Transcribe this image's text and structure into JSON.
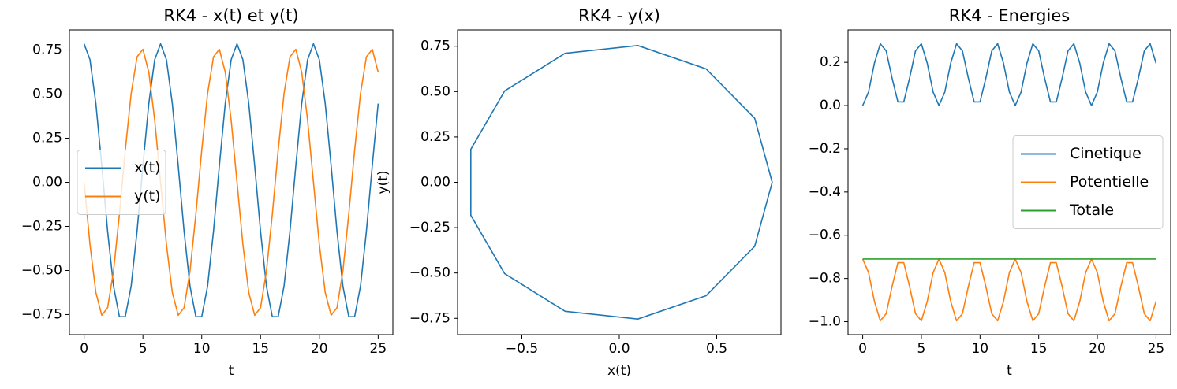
{
  "chart_data": [
    {
      "type": "line",
      "title": "RK4 - x(t) et y(t)",
      "x_label": "t",
      "x": [
        0,
        0.5,
        1,
        1.5,
        2,
        2.5,
        3,
        3.5,
        4,
        4.5,
        5,
        5.5,
        6,
        6.5,
        7,
        7.5,
        8,
        8.5,
        9,
        9.5,
        10,
        10.5,
        11,
        11.5,
        12,
        12.5,
        13,
        13.5,
        14,
        14.5,
        15,
        15.5,
        16,
        16.5,
        17,
        17.5,
        18,
        18.5,
        19,
        19.5,
        20,
        20.5,
        21,
        21.5,
        22,
        22.5,
        23,
        23.5,
        24,
        24.5,
        25
      ],
      "series": [
        {
          "name": "x(t)",
          "color": "#1f77b4",
          "values": [
            0.785,
            0.695,
            0.446,
            0.095,
            -0.278,
            -0.588,
            -0.762,
            -0.762,
            -0.588,
            -0.278,
            0.095,
            0.446,
            0.695,
            0.785,
            0.695,
            0.446,
            0.095,
            -0.278,
            -0.588,
            -0.762,
            -0.762,
            -0.588,
            -0.278,
            0.095,
            0.446,
            0.695,
            0.785,
            0.695,
            0.446,
            0.095,
            -0.278,
            -0.588,
            -0.762,
            -0.762,
            -0.588,
            -0.278,
            0.095,
            0.446,
            0.695,
            0.785,
            0.695,
            0.446,
            0.095,
            -0.278,
            -0.588,
            -0.762,
            -0.762,
            -0.588,
            -0.278,
            0.095,
            0.446
          ]
        },
        {
          "name": "y(t)",
          "color": "#ff7f0e",
          "values": [
            0,
            -0.353,
            -0.625,
            -0.754,
            -0.711,
            -0.504,
            -0.182,
            0.182,
            0.504,
            0.711,
            0.754,
            0.625,
            0.353,
            0,
            -0.353,
            -0.625,
            -0.754,
            -0.711,
            -0.504,
            -0.182,
            0.182,
            0.504,
            0.711,
            0.754,
            0.625,
            0.353,
            0,
            -0.353,
            -0.625,
            -0.754,
            -0.711,
            -0.504,
            -0.182,
            0.182,
            0.504,
            0.711,
            0.754,
            0.625,
            0.353,
            0,
            -0.353,
            -0.625,
            -0.754,
            -0.711,
            -0.504,
            -0.182,
            0.182,
            0.504,
            0.711,
            0.754,
            0.625
          ]
        }
      ],
      "xlim": [
        -1.25,
        26.25
      ],
      "xticks": [
        0,
        5,
        10,
        15,
        20,
        25
      ],
      "ylim": [
        -0.864,
        0.864
      ],
      "yticks": [
        {
          "value": -0.75,
          "label": "−0.75"
        },
        {
          "value": -0.5,
          "label": "−0.50"
        },
        {
          "value": -0.25,
          "label": "−0.25"
        },
        {
          "value": 0,
          "label": "0.00"
        },
        0.25,
        {
          "value": 0.5,
          "label": "0.50"
        },
        0.75
      ],
      "legend": "center left"
    },
    {
      "type": "line",
      "title": "RK4 - y(x)",
      "x_label": "x(t)",
      "y_label": "y(t)",
      "x": [
        0.785,
        0.695,
        0.446,
        0.095,
        -0.278,
        -0.588,
        -0.762,
        -0.762,
        -0.588,
        -0.278,
        0.095,
        0.446,
        0.695,
        0.785,
        0.695,
        0.446,
        0.095,
        -0.278,
        -0.588,
        -0.762,
        -0.762,
        -0.588,
        -0.278,
        0.095,
        0.446,
        0.695,
        0.785,
        0.695,
        0.446,
        0.095,
        -0.278,
        -0.588,
        -0.762,
        -0.762,
        -0.588,
        -0.278,
        0.095,
        0.446,
        0.695,
        0.785,
        0.695,
        0.446,
        0.095,
        -0.278,
        -0.588,
        -0.762,
        -0.762,
        -0.588,
        -0.278,
        0.095,
        0.446
      ],
      "series": [
        {
          "color": "#1f77b4",
          "values": [
            0,
            -0.353,
            -0.625,
            -0.754,
            -0.711,
            -0.504,
            -0.182,
            0.182,
            0.504,
            0.711,
            0.754,
            0.625,
            0.353,
            0,
            -0.353,
            -0.625,
            -0.754,
            -0.711,
            -0.504,
            -0.182,
            0.182,
            0.504,
            0.711,
            0.754,
            0.625,
            0.353,
            0,
            -0.353,
            -0.625,
            -0.754,
            -0.711,
            -0.504,
            -0.182,
            0.182,
            0.504,
            0.711,
            0.754,
            0.625,
            0.353,
            0,
            -0.353,
            -0.625,
            -0.754,
            -0.711,
            -0.504,
            -0.182,
            0.182,
            0.504,
            0.711,
            0.754,
            0.625
          ]
        }
      ],
      "xlim": [
        -0.83,
        0.83
      ],
      "xticks": [
        {
          "value": -0.5,
          "label": "−0.5"
        },
        {
          "value": 0,
          "label": "0.0"
        },
        {
          "value": 0.5,
          "label": "0.5"
        }
      ],
      "ylim": [
        -0.84,
        0.84
      ],
      "yticks": [
        {
          "value": -0.75,
          "label": "−0.75"
        },
        {
          "value": -0.5,
          "label": "−0.50"
        },
        {
          "value": -0.25,
          "label": "−0.25"
        },
        {
          "value": 0,
          "label": "0.00"
        },
        0.25,
        {
          "value": 0.5,
          "label": "0.50"
        },
        0.75
      ]
    },
    {
      "type": "line",
      "title": "RK4 - Energies",
      "x_label": "t",
      "x": [
        0,
        0.5,
        1,
        1.5,
        2,
        2.5,
        3,
        3.5,
        4,
        4.5,
        5,
        5.5,
        6,
        6.5,
        7,
        7.5,
        8,
        8.5,
        9,
        9.5,
        10,
        10.5,
        11,
        11.5,
        12,
        12.5,
        13,
        13.5,
        14,
        14.5,
        15,
        15.5,
        16,
        16.5,
        17,
        17.5,
        18,
        18.5,
        19,
        19.5,
        20,
        20.5,
        21,
        21.5,
        22,
        22.5,
        23,
        23.5,
        24,
        24.5,
        25
      ],
      "series": [
        {
          "name": "Cinetique",
          "color": "#1f77b4",
          "values": [
            0,
            0.063,
            0.196,
            0.286,
            0.253,
            0.128,
            0.017,
            0.017,
            0.128,
            0.253,
            0.286,
            0.196,
            0.063,
            0,
            0.063,
            0.196,
            0.286,
            0.253,
            0.128,
            0.017,
            0.017,
            0.128,
            0.253,
            0.286,
            0.196,
            0.063,
            0,
            0.063,
            0.196,
            0.286,
            0.253,
            0.128,
            0.017,
            0.017,
            0.128,
            0.253,
            0.286,
            0.196,
            0.063,
            0,
            0.063,
            0.196,
            0.286,
            0.253,
            0.128,
            0.017,
            0.017,
            0.128,
            0.253,
            0.286,
            0.196
          ]
        },
        {
          "name": "Potentielle",
          "color": "#ff7f0e",
          "values": [
            -0.71,
            -0.773,
            -0.906,
            -0.996,
            -0.963,
            -0.838,
            -0.727,
            -0.727,
            -0.838,
            -0.963,
            -0.996,
            -0.906,
            -0.773,
            -0.71,
            -0.773,
            -0.906,
            -0.996,
            -0.963,
            -0.838,
            -0.727,
            -0.727,
            -0.838,
            -0.963,
            -0.996,
            -0.906,
            -0.773,
            -0.71,
            -0.773,
            -0.906,
            -0.996,
            -0.963,
            -0.838,
            -0.727,
            -0.727,
            -0.838,
            -0.963,
            -0.996,
            -0.906,
            -0.773,
            -0.71,
            -0.773,
            -0.906,
            -0.996,
            -0.963,
            -0.838,
            -0.727,
            -0.727,
            -0.838,
            -0.963,
            -0.996,
            -0.906
          ]
        },
        {
          "name": "Totale",
          "color": "#2ca02c",
          "values": [
            -0.71,
            -0.71,
            -0.71,
            -0.71,
            -0.71,
            -0.71,
            -0.71,
            -0.71,
            -0.71,
            -0.71,
            -0.71,
            -0.71,
            -0.71,
            -0.71,
            -0.71,
            -0.71,
            -0.71,
            -0.71,
            -0.71,
            -0.71,
            -0.71,
            -0.71,
            -0.71,
            -0.71,
            -0.71,
            -0.71,
            -0.71,
            -0.71,
            -0.71,
            -0.71,
            -0.71,
            -0.71,
            -0.71,
            -0.71,
            -0.71,
            -0.71,
            -0.71,
            -0.71,
            -0.71,
            -0.71,
            -0.71,
            -0.71,
            -0.71,
            -0.71,
            -0.71,
            -0.71,
            -0.71,
            -0.71,
            -0.71,
            -0.71,
            -0.71
          ]
        }
      ],
      "xlim": [
        -1.25,
        26.25
      ],
      "xticks": [
        0,
        5,
        10,
        15,
        20,
        25
      ],
      "ylim": [
        -1.06,
        0.35
      ],
      "yticks": [
        {
          "value": -1.0,
          "label": "−1.0"
        },
        {
          "value": -0.8,
          "label": "−0.8"
        },
        {
          "value": -0.6,
          "label": "−0.6"
        },
        {
          "value": -0.4,
          "label": "−0.4"
        },
        {
          "value": -0.2,
          "label": "−0.2"
        },
        {
          "value": 0,
          "label": "0.0"
        },
        0.2
      ],
      "legend": "center right"
    }
  ]
}
